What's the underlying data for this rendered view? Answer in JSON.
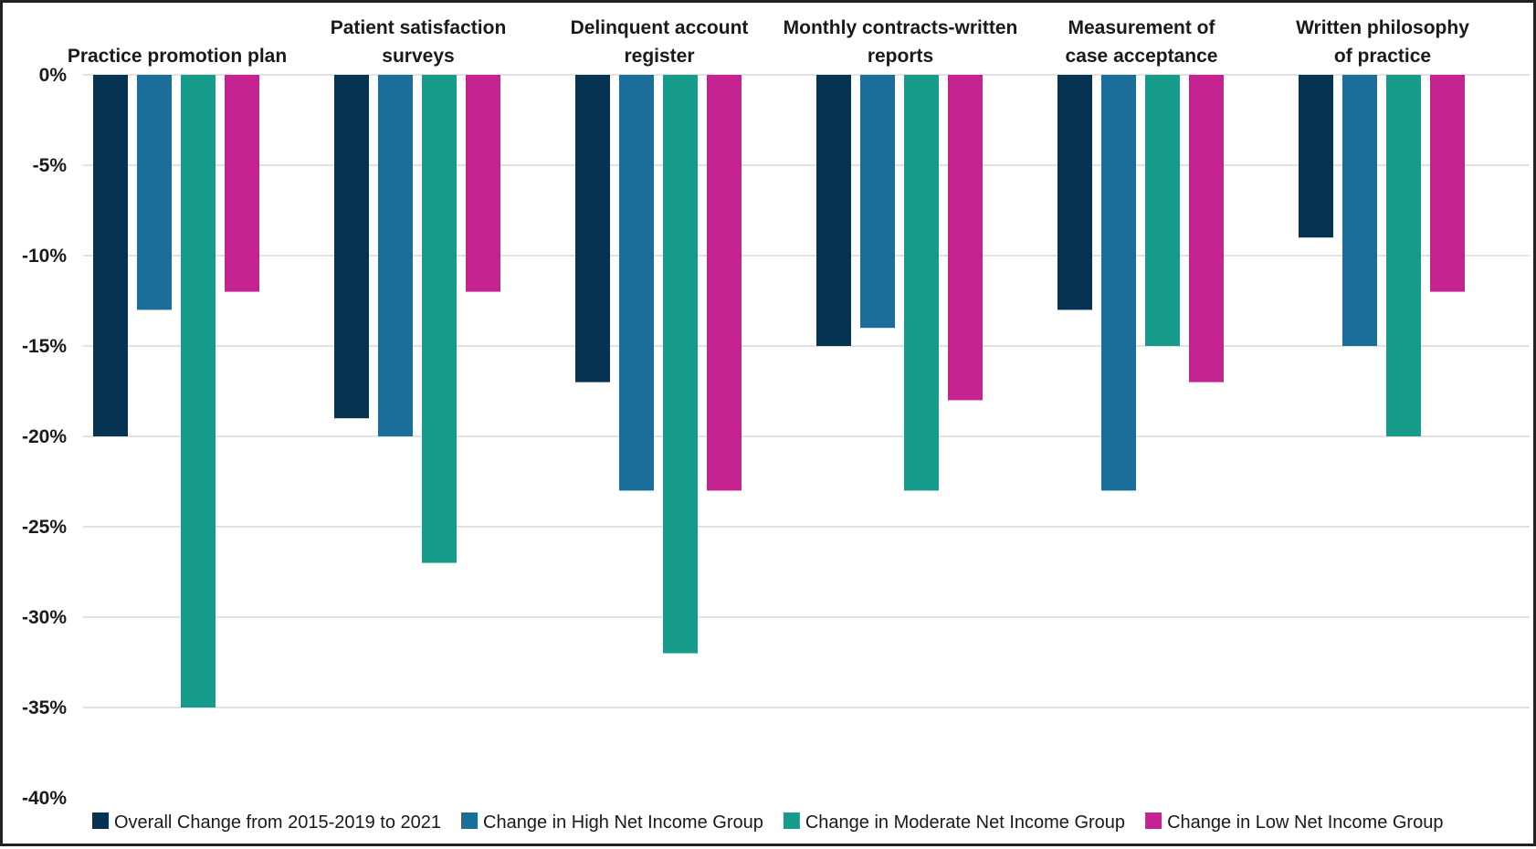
{
  "chart_data": {
    "type": "bar",
    "title": "",
    "xlabel": "",
    "ylabel": "",
    "categories": [
      [
        "Practice promotion plan"
      ],
      [
        "Patient satisfaction",
        "surveys"
      ],
      [
        "Delinquent account",
        "register"
      ],
      [
        "Monthly contracts-written",
        "reports"
      ],
      [
        "Measurement of",
        "case acceptance"
      ],
      [
        "Written philosophy",
        "of practice"
      ]
    ],
    "series": [
      {
        "name": "Overall Change from 2015-2019 to 2021",
        "color": "#073352",
        "values": [
          -20,
          -19,
          -17,
          -15,
          -13,
          -9
        ]
      },
      {
        "name": "Change in High Net Income Group",
        "color": "#1a6f9a",
        "values": [
          -13,
          -20,
          -23,
          -14,
          -23,
          -15
        ]
      },
      {
        "name": "Change in Moderate Net Income Group",
        "color": "#179c8c",
        "values": [
          -35,
          -27,
          -32,
          -23,
          -15,
          -20
        ]
      },
      {
        "name": "Change in Low Net Income Group",
        "color": "#c4248f",
        "values": [
          -12,
          -12,
          -23,
          -18,
          -17,
          -12
        ]
      }
    ],
    "ylim": [
      -40,
      0
    ],
    "yticks": [
      0,
      -5,
      -10,
      -15,
      -20,
      -25,
      -30,
      -35,
      -40
    ],
    "ytick_labels": [
      "0%",
      "-5%",
      "-10%",
      "-15%",
      "-20%",
      "-25%",
      "-30%",
      "-35%",
      "-40%"
    ],
    "grid": true,
    "legend_position": "bottom"
  }
}
